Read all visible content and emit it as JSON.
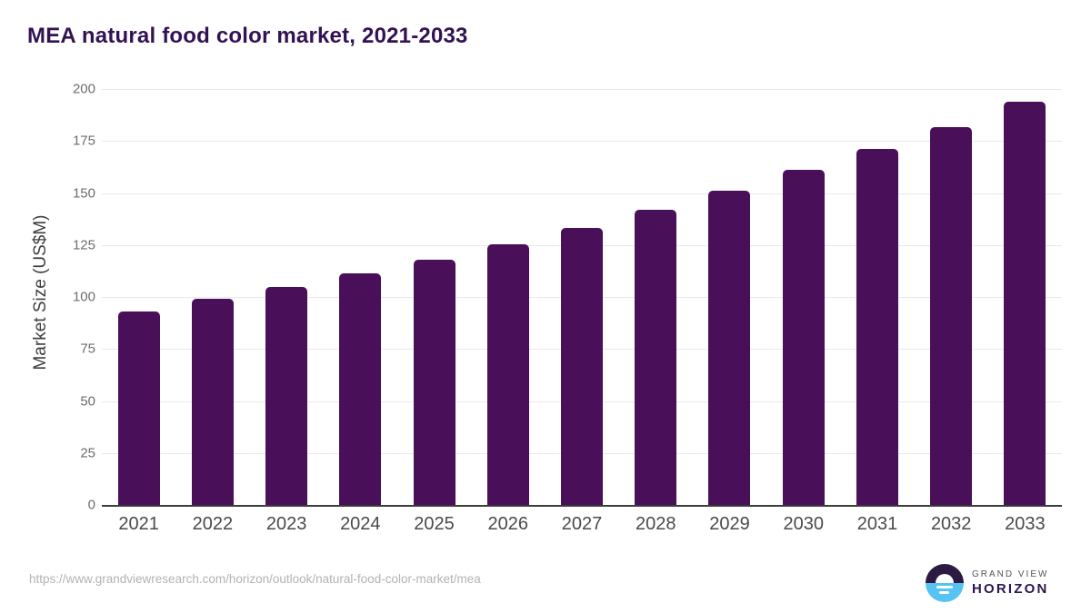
{
  "chart_data": {
    "type": "bar",
    "title": "MEA natural food color market, 2021-2033",
    "categories": [
      "2021",
      "2022",
      "2023",
      "2024",
      "2025",
      "2026",
      "2027",
      "2028",
      "2029",
      "2030",
      "2031",
      "2032",
      "2033"
    ],
    "values": [
      93,
      99,
      105,
      111.5,
      118,
      125.5,
      133,
      142,
      151,
      161,
      171,
      181.5,
      194
    ],
    "xlabel": "",
    "ylabel": "Market Size (US$M)",
    "ylim": [
      0,
      200
    ],
    "yticks": [
      0,
      25,
      50,
      75,
      100,
      125,
      150,
      175,
      200
    ],
    "grid": "horizontal",
    "legend": "none",
    "bar_color": "#490f58"
  },
  "footer": {
    "source_url": "https://www.grandviewresearch.com/horizon/outlook/natural-food-color-market/mea",
    "logo": {
      "line1": "GRAND VIEW",
      "line2": "HORIZON"
    }
  },
  "colors": {
    "bar": "#490f58",
    "title": "#331253",
    "grid": "#e9e9ec",
    "axis": "#3c3c3c",
    "ytick": "#6d6d6d",
    "xtick": "#4a4a4a",
    "ylabel": "#3f3f3f",
    "url": "#b3b3b3",
    "logo_dark": "#2b1b42",
    "logo_blue": "#56c3f2",
    "logo_horizon": "#2d1650",
    "logo_grandview": "#55555a"
  }
}
